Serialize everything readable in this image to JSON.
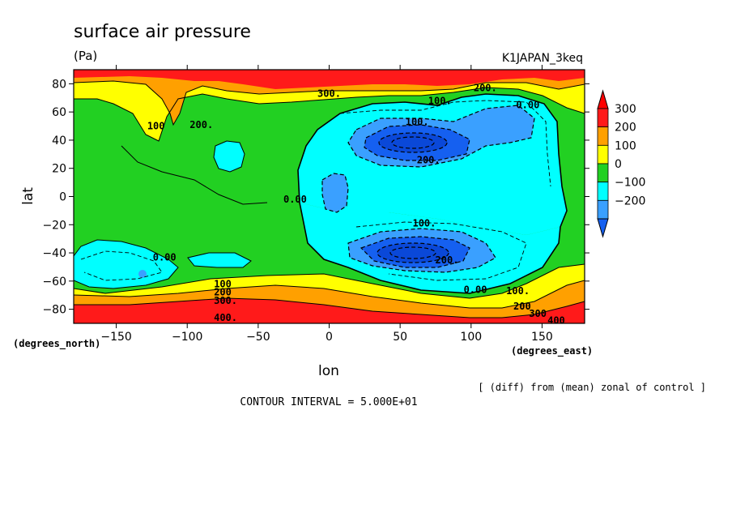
{
  "chart_data": {
    "type": "heatmap",
    "title": "surface air pressure",
    "units": "(Pa)",
    "run_label": "K1JAPAN_3keq",
    "xlabel": "lon",
    "ylabel": "lat",
    "x_unit_label": "(degrees_east)",
    "y_unit_label": "(degrees_north)",
    "xlim": [
      -180,
      180
    ],
    "ylim": [
      -90,
      90
    ],
    "x_ticks": [
      -150,
      -100,
      -50,
      0,
      50,
      100,
      150
    ],
    "y_ticks": [
      -80,
      -60,
      -40,
      -20,
      0,
      20,
      40,
      60,
      80
    ],
    "diff_note": "[ (diff) from (mean) zonal of control ]",
    "contour_interval_text": "CONTOUR INTERVAL = 5.000E+01",
    "colorbar": {
      "labels": [
        "300",
        "200",
        "100",
        "0",
        "−100",
        "−200"
      ],
      "levels": [
        -200,
        -100,
        0,
        100,
        200,
        300
      ],
      "colors": [
        "#1560f0",
        "#3aa0ff",
        "#00ffff",
        "#22d022",
        "#ffff00",
        "#ffa000",
        "#ff1a1a",
        "#ff0000"
      ]
    },
    "contour_labels": [
      {
        "text": "300.",
        "lon": 0,
        "lat": 73
      },
      {
        "text": "200.",
        "lon": 110,
        "lat": 77
      },
      {
        "text": "100.",
        "lon": 78,
        "lat": 68
      },
      {
        "text": "0.00",
        "lon": 140,
        "lat": 65
      },
      {
        "text": "200.",
        "lon": -90,
        "lat": 51
      },
      {
        "text": "100",
        "lon": -122,
        "lat": 50
      },
      {
        "text": "100.",
        "lon": 62,
        "lat": 53
      },
      {
        "text": "200.",
        "lon": 70,
        "lat": 26
      },
      {
        "text": "0.00",
        "lon": -24,
        "lat": -2
      },
      {
        "text": "100.",
        "lon": 67,
        "lat": -19
      },
      {
        "text": "0.00",
        "lon": -116,
        "lat": -43
      },
      {
        "text": "200.",
        "lon": 83,
        "lat": -45
      },
      {
        "text": "0.00",
        "lon": 103,
        "lat": -66
      },
      {
        "text": "100",
        "lon": -75,
        "lat": -62
      },
      {
        "text": "200",
        "lon": -75,
        "lat": -68
      },
      {
        "text": "300.",
        "lon": -73,
        "lat": -74
      },
      {
        "text": "100.",
        "lon": 133,
        "lat": -67
      },
      {
        "text": "400.",
        "lon": -73,
        "lat": -86
      },
      {
        "text": "200",
        "lon": 136,
        "lat": -78
      },
      {
        "text": "300",
        "lon": 147,
        "lat": -83
      },
      {
        "text": "400",
        "lon": 160,
        "lat": -88
      }
    ]
  }
}
